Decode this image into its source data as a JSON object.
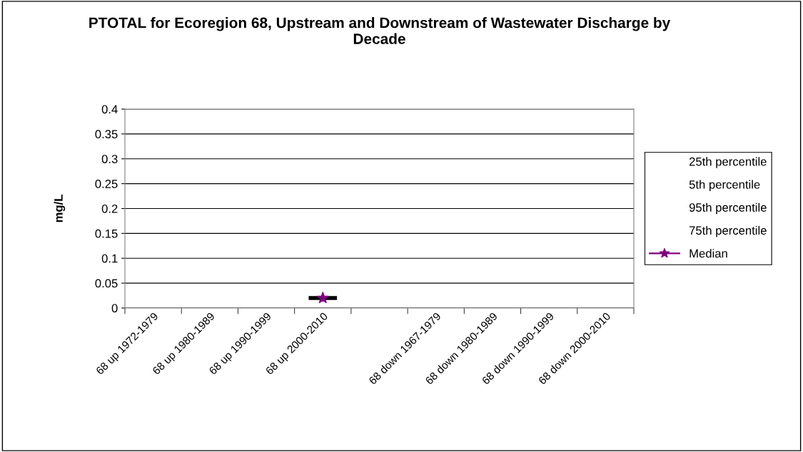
{
  "chart_data": {
    "type": "candlestick",
    "title": "PTOTAL for Ecoregion 68, Upstream and Downstream of Wastewater Discharge by Decade",
    "ylabel": "mg/L",
    "categories": [
      "68 up 1972-1979",
      "68 up 1980-1989",
      "68 up 1990-1999",
      "68 up 2000-2010",
      null,
      "68 down 1967-1979",
      "68 down 1980-1989",
      "68 down 1990-1999",
      "68 down 2000-2010"
    ],
    "ohlc": [
      null,
      null,
      null,
      [
        0.02,
        0.02,
        0.02,
        0.02
      ],
      null,
      null,
      null,
      null,
      null
    ],
    "annotations": [
      "25th percentile",
      "5th percentile",
      "95th percentile",
      "75th percentile"
    ],
    "series": [
      {
        "name": "Median",
        "type": "line",
        "color": "#800080",
        "marker": "star",
        "values": [
          null,
          null,
          null,
          0.02,
          null,
          null,
          null,
          null,
          null
        ]
      }
    ],
    "ylim": [
      0,
      0.4
    ],
    "yticks": [
      0,
      0.05,
      0.1,
      0.15,
      0.2,
      0.25,
      0.3,
      0.35,
      0.4
    ],
    "grid": "y",
    "legend": "right"
  }
}
